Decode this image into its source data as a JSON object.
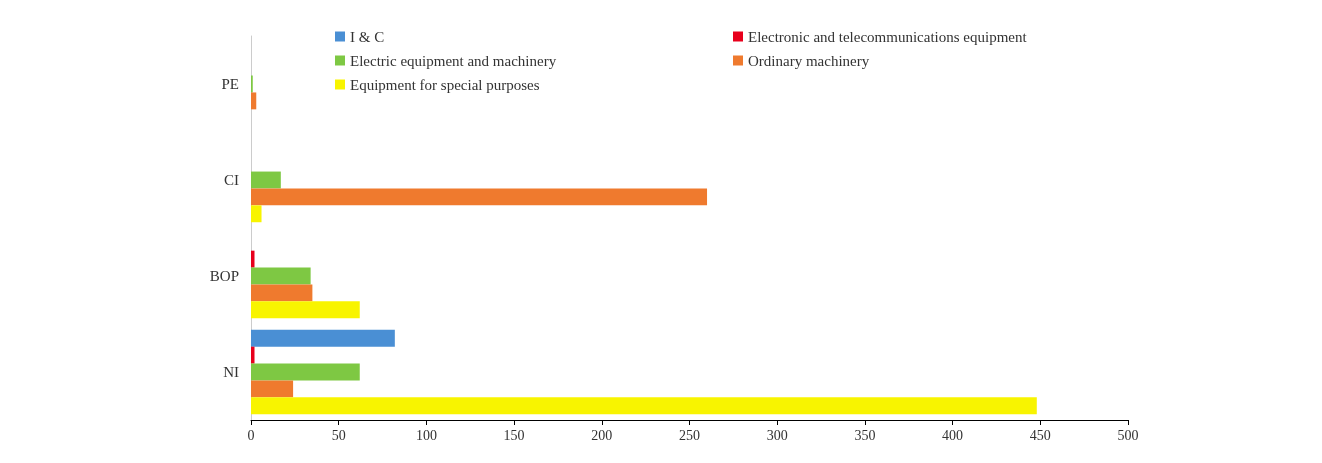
{
  "chart_data": {
    "type": "bar",
    "orientation": "horizontal",
    "categories": [
      "PE",
      "CI",
      "BOP",
      "NI"
    ],
    "series": [
      {
        "name": "I & C",
        "color": "#4a8fd4",
        "values": [
          0,
          0,
          0,
          82
        ]
      },
      {
        "name": "Electronic and telecommunications equipment",
        "color": "#e8001c",
        "values": [
          0,
          0,
          2,
          2
        ]
      },
      {
        "name": "Electric equipment and machinery",
        "color": "#7ec843",
        "values": [
          1,
          17,
          34,
          62
        ]
      },
      {
        "name": "Ordinary machinery",
        "color": "#ef7a2e",
        "values": [
          3,
          260,
          35,
          24
        ]
      },
      {
        "name": "Equipment for special purposes",
        "color": "#f8f400",
        "values": [
          0,
          6,
          62,
          448
        ]
      }
    ],
    "xlim": [
      0,
      500
    ],
    "xticks": [
      0,
      50,
      100,
      150,
      200,
      250,
      300,
      350,
      400,
      450,
      500
    ],
    "grid": false,
    "legend": "top"
  }
}
